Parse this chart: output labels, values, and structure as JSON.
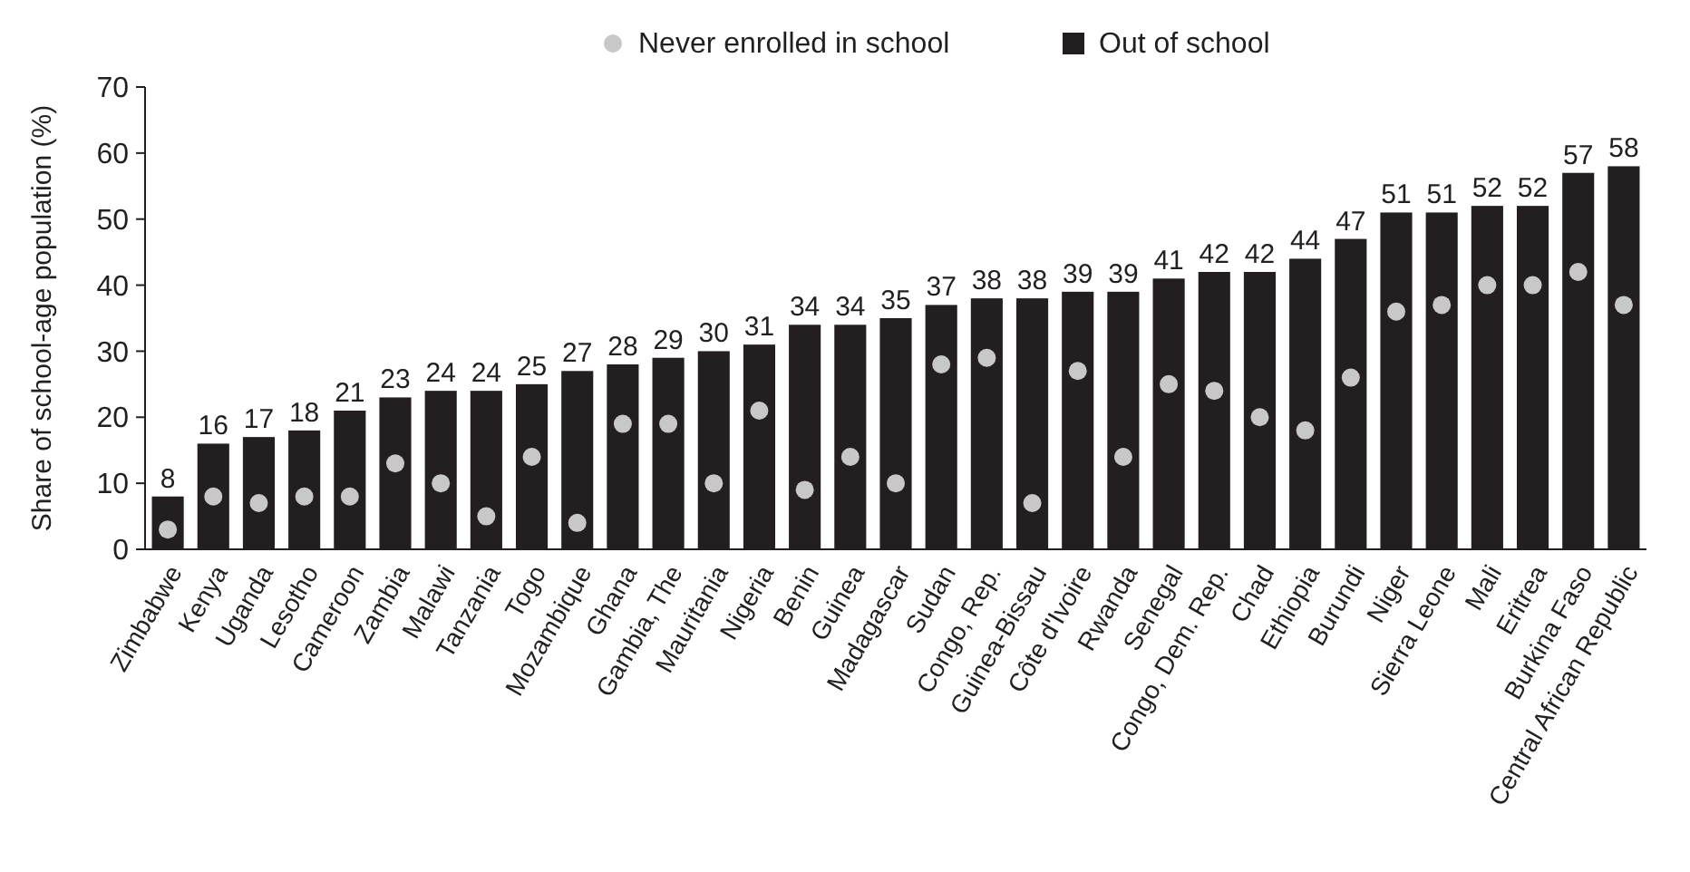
{
  "chart_data": {
    "type": "bar",
    "ylabel": "Share of school-age population (%)",
    "categories": [
      "Zimbabwe",
      "Kenya",
      "Uganda",
      "Lesotho",
      "Cameroon",
      "Zambia",
      "Malawi",
      "Tanzania",
      "Togo",
      "Mozambique",
      "Ghana",
      "Gambia, The",
      "Mauritania",
      "Nigeria",
      "Benin",
      "Guinea",
      "Madagascar",
      "Sudan",
      "Congo, Rep.",
      "Guinea-Bissau",
      "Côte d'Ivoire",
      "Rwanda",
      "Senegal",
      "Congo, Dem. Rep.",
      "Chad",
      "Ethiopia",
      "Burundi",
      "Niger",
      "Sierra Leone",
      "Mali",
      "Eritrea",
      "Burkina Faso",
      "Central African Republic"
    ],
    "series": [
      {
        "name": "Out of school",
        "color": "#231f20",
        "values": [
          8,
          16,
          17,
          18,
          21,
          23,
          24,
          24,
          25,
          27,
          28,
          29,
          30,
          31,
          34,
          34,
          35,
          37,
          38,
          38,
          39,
          39,
          41,
          42,
          42,
          44,
          47,
          51,
          51,
          52,
          52,
          57,
          58
        ],
        "value_labels": [
          "8",
          "16",
          "17",
          "18",
          "21",
          "23",
          "24",
          "24",
          "25",
          "27",
          "28",
          "29",
          "30",
          "31",
          "34",
          "34",
          "35",
          "37",
          "38",
          "38",
          "39",
          "39",
          "41",
          "42",
          "42",
          "44",
          "47",
          "51",
          "51",
          "52",
          "52",
          "57",
          "58"
        ]
      },
      {
        "name": "Never enrolled in school",
        "type": "scatter",
        "color": "#c8c8c8",
        "marker": "circle",
        "x": [
          "Zimbabwe",
          "Kenya",
          "Uganda",
          "Lesotho",
          "Cameroon",
          "Zambia",
          "Malawi",
          "Tanzania",
          "Togo",
          "Mozambique",
          "Ghana",
          "Gambia, The",
          "Mauritania",
          "Nigeria",
          "Benin",
          "Guinea",
          "Madagascar",
          "Sudan",
          "Congo, Rep.",
          "Guinea-Bissau",
          "Côte d'Ivoire",
          "Rwanda",
          "Senegal",
          "Congo, Dem. Rep.",
          "Chad",
          "Ethiopia",
          "Burundi",
          "Niger",
          "Sierra Leone",
          "Mali",
          "Eritrea",
          "Burkina Faso",
          "Central African Republic"
        ],
        "values": [
          3,
          8,
          7,
          8,
          8,
          13,
          10,
          5,
          14,
          4,
          19,
          19,
          10,
          21,
          9,
          14,
          10,
          28,
          29,
          7,
          27,
          14,
          25,
          24,
          20,
          18,
          26,
          36,
          37,
          40,
          40,
          42,
          37
        ]
      }
    ],
    "ylim": [
      0,
      70
    ],
    "yticks": [
      0,
      10,
      20,
      30,
      40,
      50,
      60,
      70
    ],
    "grid": false,
    "legend": "top"
  }
}
